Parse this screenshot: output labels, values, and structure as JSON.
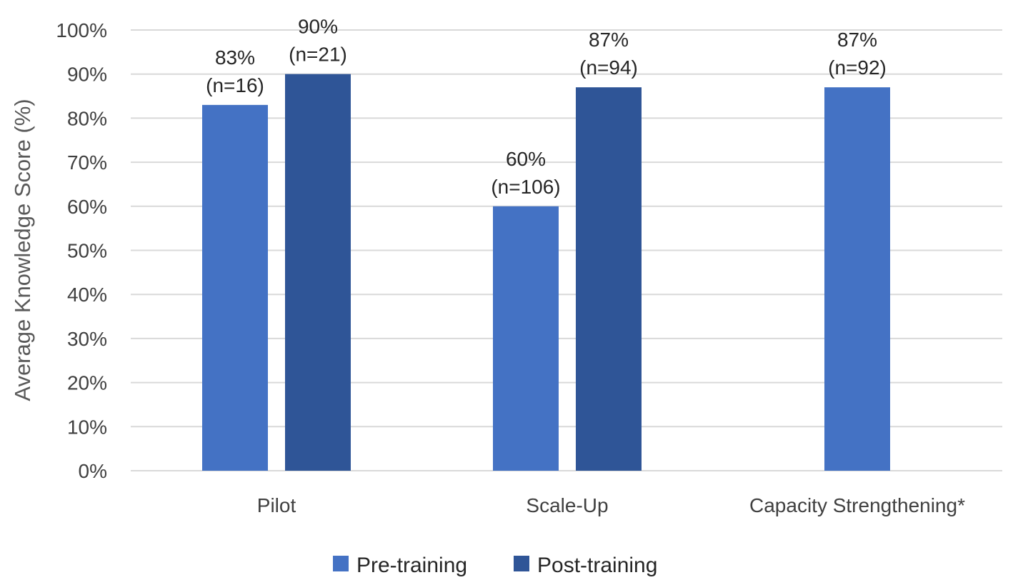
{
  "chart_data": {
    "type": "bar",
    "title": "",
    "xlabel": "",
    "ylabel": "Average Knowledge Score (%)",
    "ylim": [
      0,
      100
    ],
    "yticks": [
      "0%",
      "10%",
      "20%",
      "30%",
      "40%",
      "50%",
      "60%",
      "70%",
      "80%",
      "90%",
      "100%"
    ],
    "categories": [
      "Pilot",
      "Scale-Up",
      "Capacity Strengthening*"
    ],
    "grid": true,
    "legend_position": "bottom",
    "series": [
      {
        "name": "Pre-training",
        "color": "#4472C4",
        "values": [
          83,
          60,
          87
        ],
        "labels": [
          "83%",
          "60%",
          "87%"
        ],
        "n_labels": [
          "(n=16)",
          "(n=106)",
          "(n=92)"
        ]
      },
      {
        "name": "Post-training",
        "color": "#2F5597",
        "values": [
          90,
          87,
          null
        ],
        "labels": [
          "90%",
          "87%",
          null
        ],
        "n_labels": [
          "(n=21)",
          "(n=94)",
          null
        ]
      }
    ]
  }
}
